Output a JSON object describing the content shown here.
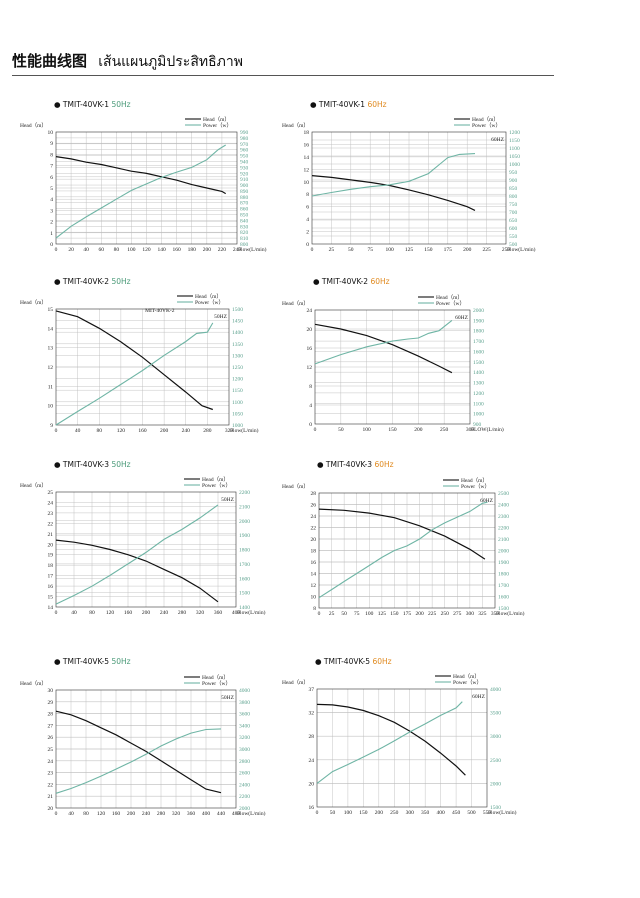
{
  "page": {
    "title_cn": "性能曲线图",
    "title_th": "เส้นแผนภูมิประสิทธิภาพ"
  },
  "colors": {
    "head": "#111111",
    "power": "#6fb5a5",
    "hz50": "#4a9a78",
    "hz60": "#e08a20"
  },
  "chart_data": [
    {
      "type": "line",
      "model": "TMIT-40VK-1",
      "hz_label": "50Hz",
      "hz": "50",
      "inner_title": "",
      "hz_tag": "",
      "xlabel": "Flow(L/min)",
      "ylabel": "Head（m）",
      "legend": [
        "Head（m）",
        "Power（w）"
      ],
      "legend_position": "top-right",
      "xlim": [
        0,
        240
      ],
      "ylim": [
        0,
        10
      ],
      "y2lim": [
        800,
        990
      ],
      "xticks": [
        "0",
        "20",
        "40",
        "60",
        "80",
        "100",
        "120",
        "140",
        "160",
        "180",
        "200",
        "220",
        "240"
      ],
      "yticks": [
        "0",
        "1",
        "2",
        "3",
        "4",
        "5",
        "6",
        "7",
        "8",
        "9",
        "10"
      ],
      "y2ticks": [
        "800",
        "810",
        "820",
        "830",
        "840",
        "850",
        "860",
        "870",
        "880",
        "890",
        "900",
        "910",
        "920",
        "930",
        "940",
        "950",
        "960",
        "970",
        "980",
        "990"
      ],
      "head_x": [
        0,
        20,
        40,
        60,
        80,
        100,
        120,
        140,
        160,
        180,
        200,
        220,
        225
      ],
      "head_y": [
        7.8,
        7.6,
        7.3,
        7.1,
        6.8,
        6.5,
        6.3,
        6.0,
        5.7,
        5.3,
        5.0,
        4.7,
        4.5
      ],
      "power_x": [
        0,
        20,
        40,
        60,
        80,
        100,
        120,
        140,
        160,
        180,
        200,
        215,
        225
      ],
      "power_y": [
        810,
        830,
        846,
        861,
        876,
        891,
        902,
        913,
        922,
        930,
        943,
        960,
        968
      ],
      "grid": true
    },
    {
      "type": "line",
      "model": "TMIT-40VK-1",
      "hz_label": "60Hz",
      "hz": "60",
      "inner_title": "",
      "hz_tag": "60HZ",
      "xlabel": "Flow(L/min)",
      "ylabel": "Head（m）",
      "legend": [
        "Head（m）",
        "Power（w）"
      ],
      "legend_position": "top-right",
      "xlim": [
        0,
        250
      ],
      "ylim": [
        0,
        18
      ],
      "y2lim": [
        500,
        1200
      ],
      "xticks": [
        "0",
        "25",
        "50",
        "75",
        "100",
        "125",
        "150",
        "175",
        "200",
        "225",
        "250"
      ],
      "yticks": [
        "0",
        "2",
        "4",
        "6",
        "8",
        "10",
        "12",
        "14",
        "16",
        "18"
      ],
      "y2ticks": [
        "500",
        "550",
        "600",
        "650",
        "700",
        "750",
        "800",
        "850",
        "900",
        "950",
        "1000",
        "1050",
        "1100",
        "1150",
        "1200"
      ],
      "head_x": [
        0,
        25,
        50,
        75,
        100,
        125,
        150,
        175,
        200,
        210
      ],
      "head_y": [
        11.0,
        10.7,
        10.3,
        9.9,
        9.4,
        8.7,
        7.9,
        7.0,
        6.0,
        5.4
      ],
      "power_x": [
        0,
        25,
        50,
        75,
        100,
        125,
        150,
        165,
        175,
        190,
        210
      ],
      "power_y": [
        800,
        822,
        842,
        858,
        870,
        892,
        940,
        1000,
        1040,
        1060,
        1065
      ],
      "grid": true
    },
    {
      "type": "line",
      "model": "TMIT-40VK-2",
      "hz_label": "50Hz",
      "hz": "50",
      "inner_title": "MIT-40VK-2",
      "hz_tag": "50HZ",
      "xlabel": "Flow(L/min)",
      "ylabel": "Head（m）",
      "legend": [
        "Head（m）",
        "Power（w）"
      ],
      "legend_position": "top-right",
      "xlim": [
        0,
        320
      ],
      "ylim": [
        9,
        15
      ],
      "y2lim": [
        1000,
        1500
      ],
      "xticks": [
        "0",
        "40",
        "80",
        "120",
        "160",
        "200",
        "240",
        "280",
        "320"
      ],
      "yticks": [
        "9",
        "10",
        "11",
        "12",
        "13",
        "14",
        "15"
      ],
      "y2ticks": [
        "1000",
        "1050",
        "1100",
        "1150",
        "1200",
        "1250",
        "1300",
        "1350",
        "1400",
        "1450",
        "1500"
      ],
      "head_x": [
        0,
        40,
        80,
        120,
        160,
        200,
        240,
        270,
        290
      ],
      "head_y": [
        14.9,
        14.6,
        14.0,
        13.3,
        12.5,
        11.6,
        10.7,
        10.0,
        9.8
      ],
      "power_x": [
        0,
        40,
        80,
        120,
        160,
        200,
        240,
        260,
        280,
        290
      ],
      "power_y": [
        1000,
        1058,
        1115,
        1175,
        1235,
        1300,
        1360,
        1395,
        1400,
        1440
      ],
      "grid": true
    },
    {
      "type": "line",
      "model": "TMIT-40VK-2",
      "hz_label": "60Hz",
      "hz": "60",
      "inner_title": "",
      "hz_tag": "60HZ",
      "xlabel": "FLOW(L/min)",
      "ylabel": "Head（m）",
      "legend": [
        "Head（m）",
        "Power（w）"
      ],
      "legend_position": "top-right",
      "xlim": [
        0,
        300
      ],
      "ylim": [
        0,
        24
      ],
      "y2lim": [
        900,
        2000
      ],
      "xticks": [
        "0",
        "50",
        "100",
        "150",
        "200",
        "250",
        "300"
      ],
      "yticks": [
        "0",
        "4",
        "8",
        "12",
        "16",
        "20",
        "24"
      ],
      "y2ticks": [
        "900",
        "1000",
        "1100",
        "1200",
        "1300",
        "1400",
        "1500",
        "1600",
        "1700",
        "1800",
        "1900",
        "2000"
      ],
      "head_x": [
        0,
        50,
        100,
        150,
        200,
        240,
        265
      ],
      "head_y": [
        21.0,
        20.0,
        18.6,
        16.7,
        14.3,
        12.2,
        10.8
      ],
      "power_x": [
        0,
        50,
        100,
        150,
        180,
        200,
        220,
        240,
        265
      ],
      "power_y": [
        1480,
        1570,
        1645,
        1700,
        1720,
        1730,
        1775,
        1800,
        1900
      ],
      "grid": true
    },
    {
      "type": "line",
      "model": "TMIT-40VK-3",
      "hz_label": "50Hz",
      "hz": "50",
      "inner_title": "",
      "hz_tag": "50HZ",
      "xlabel": "Flow(L/min)",
      "ylabel": "Head（m）",
      "legend": [
        "Head（m）",
        "Power（w）"
      ],
      "legend_position": "top-right",
      "xlim": [
        0,
        400
      ],
      "ylim": [
        14,
        25
      ],
      "y2lim": [
        1400,
        2200
      ],
      "xticks": [
        "0",
        "40",
        "80",
        "120",
        "160",
        "200",
        "240",
        "280",
        "320",
        "360",
        "400"
      ],
      "yticks": [
        "14",
        "15",
        "16",
        "17",
        "18",
        "19",
        "20",
        "21",
        "22",
        "23",
        "24",
        "25"
      ],
      "y2ticks": [
        "1400",
        "1500",
        "1600",
        "1700",
        "1800",
        "1900",
        "2000",
        "2100",
        "2200"
      ],
      "head_x": [
        0,
        40,
        80,
        120,
        160,
        200,
        240,
        280,
        320,
        360
      ],
      "head_y": [
        20.4,
        20.2,
        19.9,
        19.5,
        19.0,
        18.4,
        17.6,
        16.8,
        15.8,
        14.5
      ],
      "power_x": [
        0,
        40,
        80,
        120,
        160,
        200,
        240,
        280,
        320,
        360
      ],
      "power_y": [
        1420,
        1480,
        1545,
        1620,
        1700,
        1780,
        1870,
        1940,
        2020,
        2110
      ],
      "grid": true
    },
    {
      "type": "line",
      "model": "TMIT-40VK-3",
      "hz_label": "60Hz",
      "hz": "60",
      "inner_title": "",
      "hz_tag": "60HZ",
      "xlabel": "Flow(L/min)",
      "ylabel": "Head（m）",
      "legend": [
        "Head（m）",
        "Power（w）"
      ],
      "legend_position": "top-right",
      "xlim": [
        0,
        350
      ],
      "ylim": [
        8,
        28
      ],
      "y2lim": [
        1500,
        2500
      ],
      "xticks": [
        "0",
        "25",
        "50",
        "75",
        "100",
        "125",
        "150",
        "175",
        "200",
        "225",
        "250",
        "275",
        "300",
        "325",
        "350"
      ],
      "yticks": [
        "8",
        "10",
        "12",
        "14",
        "16",
        "18",
        "20",
        "22",
        "24",
        "26",
        "28"
      ],
      "y2ticks": [
        "1500",
        "1600",
        "1700",
        "1800",
        "1900",
        "2000",
        "2100",
        "2200",
        "2300",
        "2400",
        "2500"
      ],
      "head_x": [
        0,
        50,
        100,
        150,
        200,
        250,
        300,
        330
      ],
      "head_y": [
        25.2,
        25.0,
        24.5,
        23.7,
        22.3,
        20.5,
        18.2,
        16.5
      ],
      "power_x": [
        0,
        25,
        50,
        75,
        100,
        125,
        150,
        175,
        200,
        225,
        250,
        275,
        300,
        325,
        335
      ],
      "power_y": [
        1590,
        1660,
        1730,
        1800,
        1870,
        1940,
        2000,
        2040,
        2100,
        2180,
        2240,
        2290,
        2340,
        2410,
        2420
      ],
      "grid": true
    },
    {
      "type": "line",
      "model": "TMIT-40VK-5",
      "hz_label": "50Hz",
      "hz": "50",
      "inner_title": "",
      "hz_tag": "50HZ",
      "xlabel": "Flow(L/min)",
      "ylabel": "Head（m）",
      "legend": [
        "Head（m）",
        "Power（w）"
      ],
      "legend_position": "top-right",
      "xlim": [
        0,
        480
      ],
      "ylim": [
        20,
        30
      ],
      "y2lim": [
        2000,
        4000
      ],
      "xticks": [
        "0",
        "40",
        "80",
        "120",
        "160",
        "200",
        "240",
        "280",
        "320",
        "360",
        "400",
        "440",
        "480"
      ],
      "yticks": [
        "20",
        "21",
        "22",
        "23",
        "24",
        "25",
        "26",
        "27",
        "28",
        "29",
        "30"
      ],
      "y2ticks": [
        "2000",
        "2200",
        "2400",
        "2600",
        "2800",
        "3000",
        "3200",
        "3400",
        "3600",
        "3800",
        "4000"
      ],
      "head_x": [
        0,
        40,
        80,
        120,
        160,
        200,
        240,
        280,
        320,
        360,
        400,
        440
      ],
      "head_y": [
        28.2,
        27.9,
        27.4,
        26.8,
        26.2,
        25.5,
        24.8,
        24.0,
        23.2,
        22.4,
        21.6,
        21.3
      ],
      "power_x": [
        0,
        40,
        80,
        120,
        160,
        200,
        240,
        280,
        320,
        360,
        400,
        440
      ],
      "power_y": [
        2250,
        2330,
        2430,
        2540,
        2660,
        2780,
        2910,
        3050,
        3170,
        3270,
        3330,
        3340
      ],
      "grid": true
    },
    {
      "type": "line",
      "model": "TMIT-40VK-5",
      "hz_label": "60Hz",
      "hz": "60",
      "inner_title": "",
      "hz_tag": "60HZ",
      "xlabel": "Flow(L/min)",
      "ylabel": "Head（m）",
      "legend": [
        "Head（m）",
        "Power（w）"
      ],
      "legend_position": "top-right",
      "xlim": [
        0,
        550
      ],
      "ylim": [
        15,
        38
      ],
      "y2lim": [
        1500,
        4000
      ],
      "xticks": [
        "0",
        "50",
        "100",
        "150",
        "200",
        "250",
        "300",
        "350",
        "400",
        "450",
        "500",
        "550"
      ],
      "yticks": [
        "16",
        "20",
        "24",
        "28",
        "32",
        "37"
      ],
      "y2ticks": [
        "1500",
        "2000",
        "2500",
        "3000",
        "3500",
        "4000"
      ],
      "head_x": [
        0,
        50,
        100,
        150,
        200,
        250,
        300,
        350,
        400,
        450,
        480
      ],
      "head_y": [
        35.0,
        34.9,
        34.5,
        33.8,
        32.8,
        31.5,
        29.8,
        27.8,
        25.5,
        23.0,
        21.2
      ],
      "power_x": [
        0,
        50,
        100,
        150,
        200,
        250,
        300,
        350,
        400,
        450,
        470
      ],
      "power_y": [
        2000,
        2250,
        2400,
        2560,
        2720,
        2900,
        3090,
        3260,
        3440,
        3600,
        3730
      ],
      "grid": true
    }
  ]
}
